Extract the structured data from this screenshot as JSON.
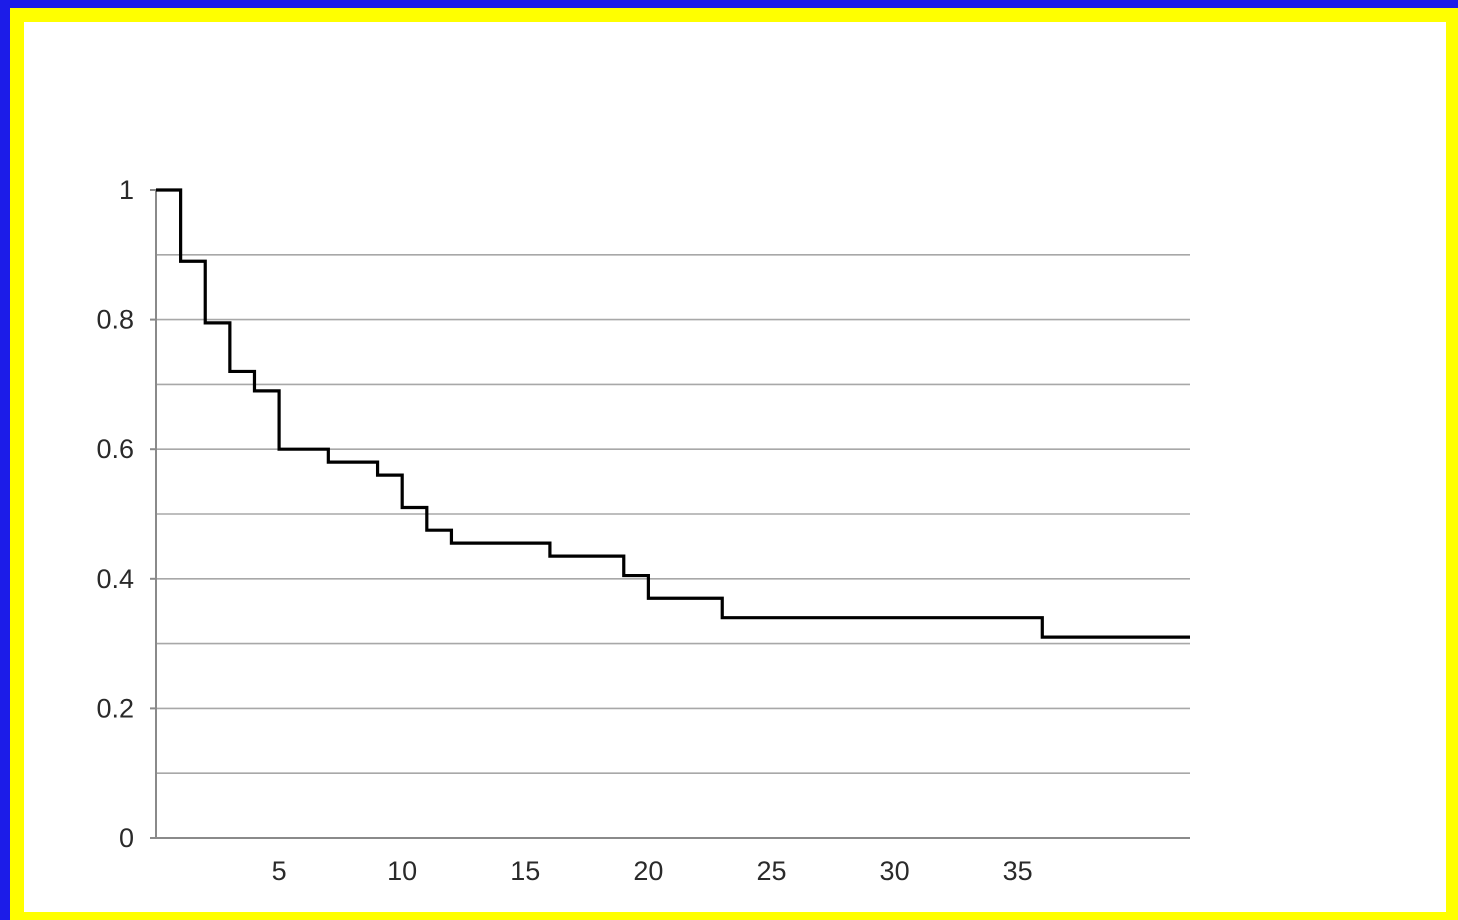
{
  "chart_data": {
    "type": "line",
    "step": true,
    "title": "",
    "xlabel": "",
    "ylabel": "",
    "xlim": [
      0,
      42
    ],
    "ylim": [
      0,
      1
    ],
    "x_ticks": [
      5,
      10,
      15,
      20,
      25,
      30,
      35
    ],
    "y_ticks": [
      0,
      0.2,
      0.4,
      0.6,
      0.8,
      1
    ],
    "y_tick_labels": [
      "0",
      "0.2",
      "0.4",
      "0.6",
      "0.8",
      "1"
    ],
    "x_tick_labels": [
      "5",
      "10",
      "15",
      "20",
      "25",
      "30",
      "35"
    ],
    "minor_gridlines": [
      0.1,
      0.3,
      0.5,
      0.7,
      0.9
    ],
    "grid": true,
    "series": [
      {
        "color": "#000000",
        "x": [
          0,
          1,
          2,
          3,
          4,
          5,
          7,
          9,
          10,
          11,
          12,
          16,
          19,
          20,
          23,
          36,
          42
        ],
        "y": [
          1,
          0.89,
          0.795,
          0.72,
          0.69,
          0.6,
          0.58,
          0.56,
          0.51,
          0.475,
          0.455,
          0.435,
          0.405,
          0.37,
          0.34,
          0.31,
          0.31
        ]
      }
    ]
  },
  "colors": {
    "outer": "#1c1ce8",
    "frame": "#ffff00",
    "panel": "#ffffff",
    "grid": "#a8a8a8",
    "axis": "#8a8a8a"
  }
}
